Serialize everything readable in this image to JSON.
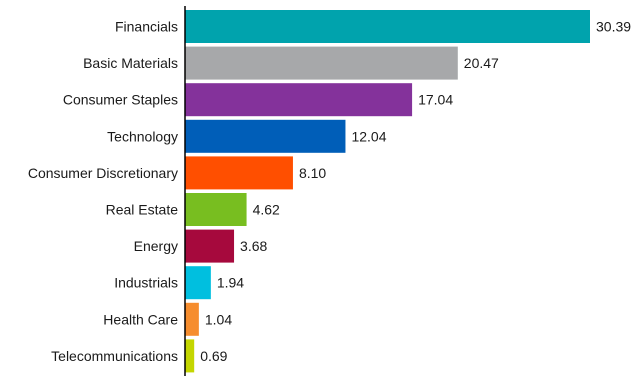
{
  "chart_data": {
    "type": "bar",
    "orientation": "horizontal",
    "categories": [
      "Financials",
      "Basic Materials",
      "Consumer Staples",
      "Technology",
      "Consumer Discretionary",
      "Real Estate",
      "Energy",
      "Industrials",
      "Health Care",
      "Telecommunications"
    ],
    "values": [
      30.39,
      20.47,
      17.04,
      12.04,
      8.1,
      4.62,
      3.68,
      1.94,
      1.04,
      0.69
    ],
    "value_labels": [
      "30.39",
      "20.47",
      "17.04",
      "12.04",
      "8.10",
      "4.62",
      "3.68",
      "1.94",
      "1.04",
      "0.69"
    ],
    "colors": [
      "#00a3ad",
      "#a7a8aa",
      "#84329b",
      "#005eb8",
      "#ff4f00",
      "#78be20",
      "#a6093d",
      "#00bfdf",
      "#f68d2e",
      "#c4d600"
    ],
    "xlim": [
      0,
      30.39
    ],
    "grid": false,
    "legend": "none"
  }
}
